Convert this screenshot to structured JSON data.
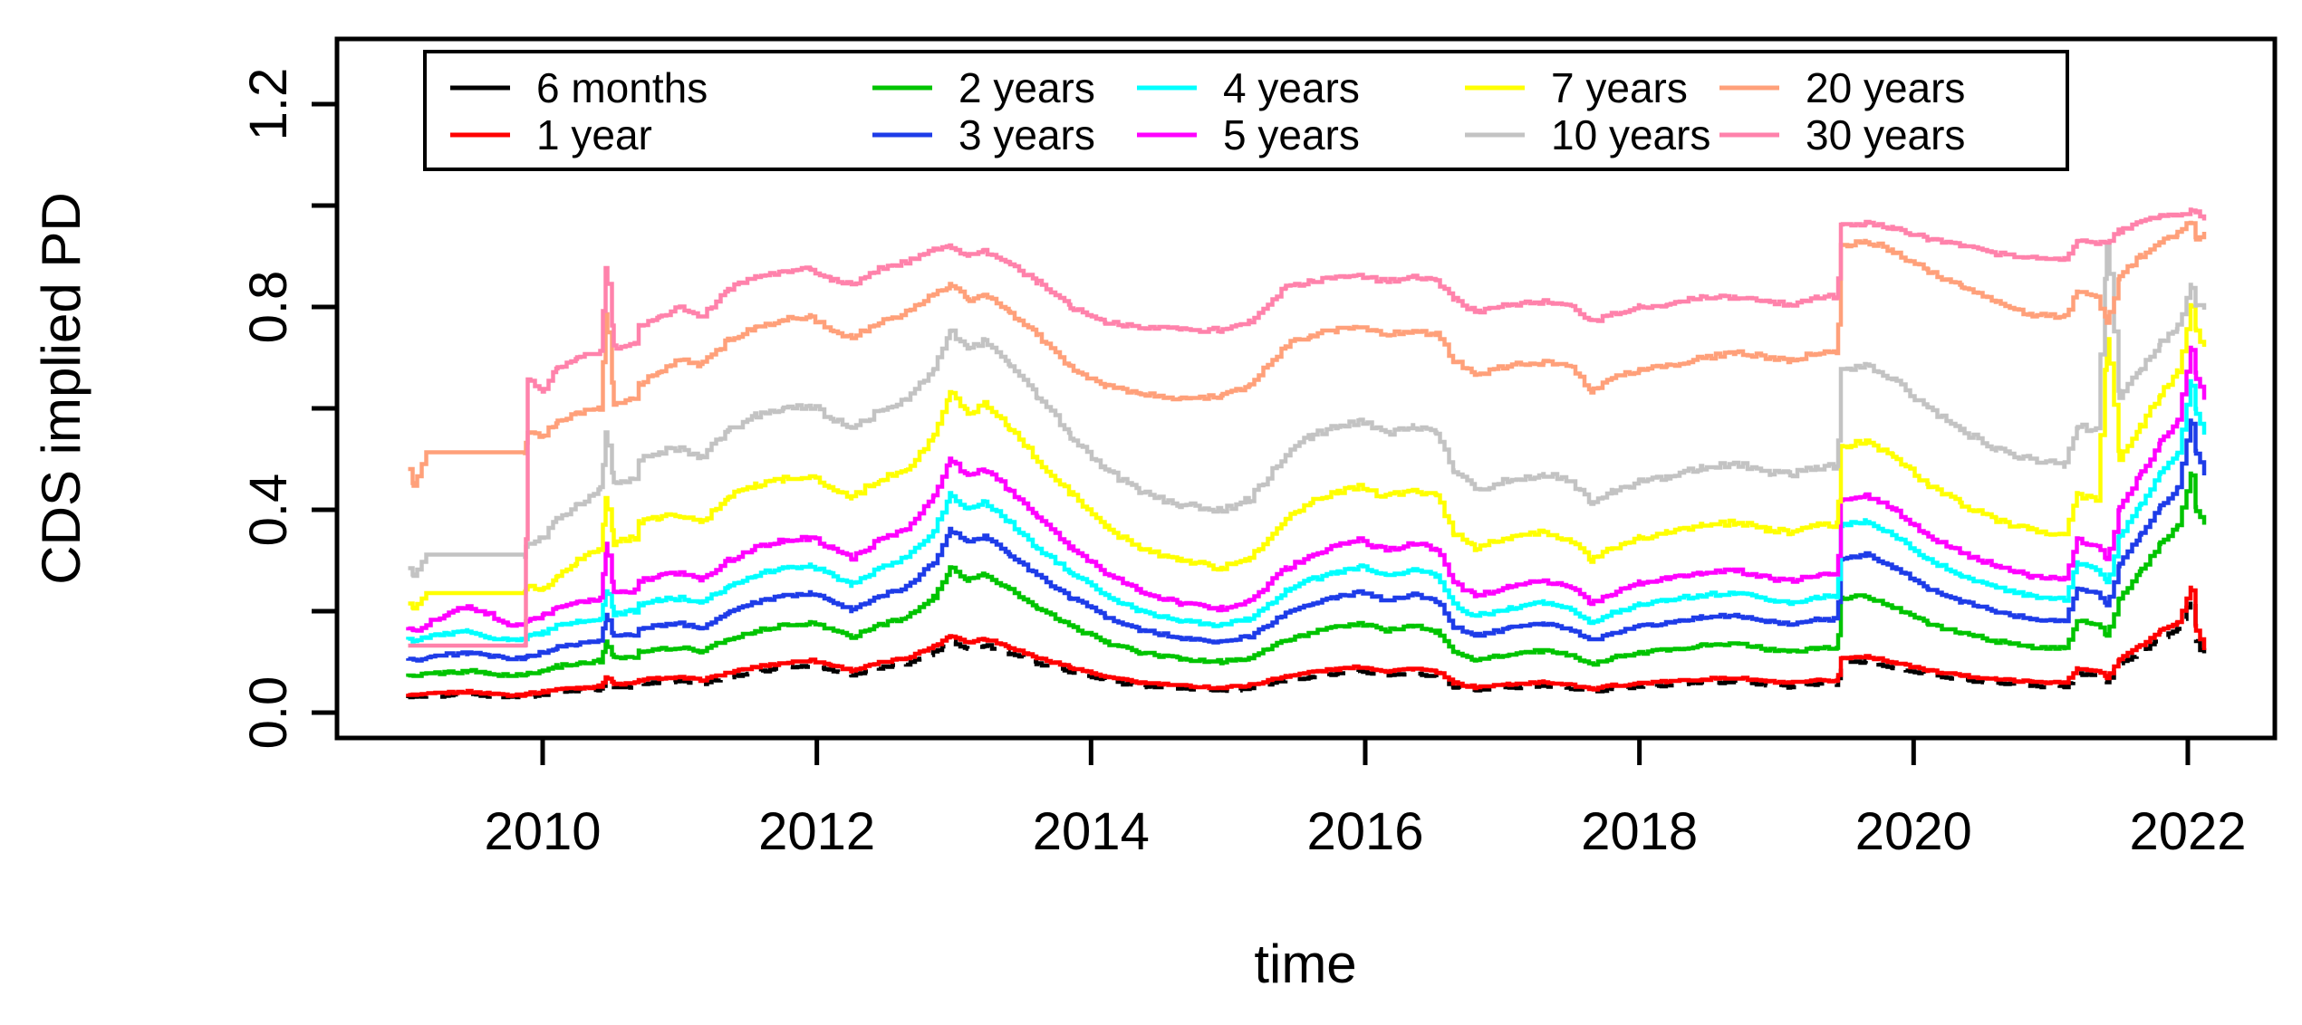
{
  "chart_data": {
    "type": "line",
    "title": "",
    "xlabel": "time",
    "ylabel": "CDS implied PD",
    "grid": false,
    "legend_position": "top",
    "legend_ncol": 5,
    "xlim": [
      2008.51,
      2022.57
    ],
    "ylim": [
      -0.05,
      1.325
    ],
    "x_tick_values": [
      2010,
      2012,
      2014,
      2016,
      2018,
      2020,
      2022
    ],
    "x_tick_labels": [
      "2010",
      "2012",
      "2014",
      "2016",
      "2018",
      "2020",
      "2022"
    ],
    "y_tick_values": [
      0,
      0.2,
      0.4,
      0.6,
      0.8,
      1.0,
      1.2
    ],
    "y_tick_label_values": [
      0,
      0.4,
      0.8,
      1.2
    ],
    "y_tick_labels_visible": [
      "0.0",
      "0.4",
      "0.8",
      "1.2"
    ],
    "x": [
      2009.02,
      2009.06,
      2009.15,
      2009.3,
      2009.45,
      2009.6,
      2009.75,
      2009.87,
      2009.89,
      2010.0,
      2010.1,
      2010.25,
      2010.42,
      2010.46,
      2010.52,
      2010.67,
      2010.7,
      2010.85,
      2011.0,
      2011.15,
      2011.35,
      2011.55,
      2011.75,
      2011.95,
      2012.1,
      2012.25,
      2012.45,
      2012.65,
      2012.85,
      2012.97,
      2013.1,
      2013.22,
      2013.4,
      2013.6,
      2013.85,
      2014.1,
      2014.35,
      2014.65,
      2014.95,
      2015.15,
      2015.42,
      2015.6,
      2015.8,
      2015.95,
      2016.15,
      2016.35,
      2016.52,
      2016.64,
      2016.8,
      2017.05,
      2017.3,
      2017.5,
      2017.65,
      2017.8,
      2018.0,
      2018.2,
      2018.45,
      2018.7,
      2018.95,
      2019.1,
      2019.3,
      2019.44,
      2019.47,
      2019.65,
      2019.85,
      2020.1,
      2020.35,
      2020.6,
      2020.85,
      2021.1,
      2021.19,
      2021.33,
      2021.41,
      2021.5,
      2021.65,
      2021.8,
      2021.92,
      2022.02,
      2022.06,
      2022.12
    ],
    "series": [
      {
        "label": "6 months",
        "color": "#000000",
        "values": [
          0.031,
          0.03,
          0.032,
          0.034,
          0.036,
          0.033,
          0.031,
          0.031,
          0.033,
          0.036,
          0.04,
          0.043,
          0.046,
          0.062,
          0.049,
          0.051,
          0.057,
          0.06,
          0.061,
          0.057,
          0.07,
          0.08,
          0.088,
          0.092,
          0.084,
          0.074,
          0.088,
          0.097,
          0.119,
          0.139,
          0.127,
          0.133,
          0.117,
          0.097,
          0.08,
          0.063,
          0.052,
          0.047,
          0.043,
          0.048,
          0.064,
          0.071,
          0.077,
          0.081,
          0.073,
          0.078,
          0.071,
          0.051,
          0.044,
          0.049,
          0.053,
          0.048,
          0.04,
          0.047,
          0.051,
          0.054,
          0.059,
          0.061,
          0.054,
          0.051,
          0.056,
          0.056,
          0.097,
          0.101,
          0.089,
          0.074,
          0.064,
          0.058,
          0.053,
          0.051,
          0.077,
          0.073,
          0.061,
          0.096,
          0.12,
          0.148,
          0.163,
          0.225,
          0.14,
          0.105
        ]
      },
      {
        "label": "1 year",
        "color": "#FF0000",
        "values": [
          0.036,
          0.034,
          0.037,
          0.039,
          0.041,
          0.038,
          0.035,
          0.035,
          0.038,
          0.041,
          0.046,
          0.049,
          0.052,
          0.07,
          0.056,
          0.058,
          0.064,
          0.068,
          0.069,
          0.064,
          0.079,
          0.09,
          0.098,
          0.103,
          0.094,
          0.083,
          0.098,
          0.108,
          0.131,
          0.152,
          0.139,
          0.146,
          0.129,
          0.108,
          0.089,
          0.071,
          0.059,
          0.053,
          0.049,
          0.054,
          0.072,
          0.08,
          0.086,
          0.09,
          0.082,
          0.087,
          0.08,
          0.058,
          0.05,
          0.056,
          0.06,
          0.055,
          0.046,
          0.053,
          0.058,
          0.061,
          0.066,
          0.068,
          0.061,
          0.058,
          0.063,
          0.063,
          0.107,
          0.111,
          0.099,
          0.083,
          0.073,
          0.066,
          0.061,
          0.059,
          0.086,
          0.082,
          0.07,
          0.107,
          0.132,
          0.162,
          0.178,
          0.245,
          0.16,
          0.125
        ]
      },
      {
        "label": "2 years",
        "color": "#00C400",
        "values": [
          0.073,
          0.071,
          0.076,
          0.079,
          0.082,
          0.077,
          0.073,
          0.073,
          0.078,
          0.083,
          0.091,
          0.097,
          0.102,
          0.138,
          0.108,
          0.111,
          0.121,
          0.126,
          0.128,
          0.121,
          0.145,
          0.161,
          0.172,
          0.177,
          0.165,
          0.149,
          0.172,
          0.188,
          0.228,
          0.285,
          0.262,
          0.272,
          0.243,
          0.206,
          0.17,
          0.139,
          0.118,
          0.106,
          0.1,
          0.108,
          0.143,
          0.158,
          0.169,
          0.176,
          0.162,
          0.171,
          0.159,
          0.119,
          0.104,
          0.115,
          0.122,
          0.112,
          0.096,
          0.108,
          0.118,
          0.124,
          0.132,
          0.136,
          0.124,
          0.12,
          0.128,
          0.128,
          0.225,
          0.23,
          0.208,
          0.176,
          0.156,
          0.141,
          0.13,
          0.126,
          0.182,
          0.175,
          0.152,
          0.228,
          0.278,
          0.335,
          0.368,
          0.47,
          0.4,
          0.37
        ]
      },
      {
        "label": "3 years",
        "color": "#1E3CE8",
        "values": [
          0.107,
          0.104,
          0.11,
          0.114,
          0.118,
          0.111,
          0.106,
          0.106,
          0.113,
          0.118,
          0.128,
          0.135,
          0.142,
          0.19,
          0.15,
          0.154,
          0.167,
          0.173,
          0.175,
          0.167,
          0.197,
          0.217,
          0.23,
          0.235,
          0.22,
          0.202,
          0.23,
          0.248,
          0.297,
          0.36,
          0.335,
          0.347,
          0.312,
          0.27,
          0.227,
          0.19,
          0.163,
          0.148,
          0.14,
          0.15,
          0.196,
          0.215,
          0.229,
          0.237,
          0.222,
          0.233,
          0.22,
          0.17,
          0.152,
          0.166,
          0.175,
          0.163,
          0.142,
          0.157,
          0.17,
          0.178,
          0.188,
          0.192,
          0.179,
          0.174,
          0.184,
          0.184,
          0.305,
          0.312,
          0.287,
          0.245,
          0.219,
          0.199,
          0.185,
          0.18,
          0.245,
          0.237,
          0.21,
          0.295,
          0.35,
          0.408,
          0.443,
          0.575,
          0.51,
          0.47
        ]
      },
      {
        "label": "4 years",
        "color": "#00FFFF",
        "values": [
          0.146,
          0.142,
          0.15,
          0.155,
          0.16,
          0.15,
          0.143,
          0.143,
          0.152,
          0.158,
          0.17,
          0.178,
          0.185,
          0.24,
          0.195,
          0.2,
          0.215,
          0.222,
          0.225,
          0.215,
          0.25,
          0.272,
          0.285,
          0.29,
          0.272,
          0.253,
          0.285,
          0.305,
          0.36,
          0.43,
          0.4,
          0.415,
          0.375,
          0.325,
          0.275,
          0.232,
          0.2,
          0.182,
          0.172,
          0.185,
          0.24,
          0.262,
          0.278,
          0.288,
          0.27,
          0.283,
          0.268,
          0.212,
          0.19,
          0.207,
          0.217,
          0.203,
          0.178,
          0.196,
          0.212,
          0.222,
          0.232,
          0.236,
          0.222,
          0.217,
          0.228,
          0.228,
          0.37,
          0.378,
          0.35,
          0.302,
          0.27,
          0.247,
          0.23,
          0.224,
          0.295,
          0.285,
          0.255,
          0.35,
          0.41,
          0.472,
          0.51,
          0.65,
          0.59,
          0.55
        ]
      },
      {
        "label": "5 years",
        "color": "#FF00FF",
        "values": [
          0.168,
          0.162,
          0.175,
          0.195,
          0.21,
          0.195,
          0.172,
          0.172,
          0.185,
          0.19,
          0.205,
          0.215,
          0.225,
          0.33,
          0.235,
          0.24,
          0.26,
          0.27,
          0.275,
          0.262,
          0.3,
          0.325,
          0.34,
          0.345,
          0.325,
          0.305,
          0.34,
          0.36,
          0.425,
          0.5,
          0.465,
          0.48,
          0.44,
          0.385,
          0.325,
          0.275,
          0.24,
          0.215,
          0.205,
          0.22,
          0.285,
          0.31,
          0.33,
          0.34,
          0.32,
          0.335,
          0.32,
          0.255,
          0.23,
          0.25,
          0.26,
          0.245,
          0.215,
          0.235,
          0.255,
          0.265,
          0.275,
          0.28,
          0.265,
          0.26,
          0.272,
          0.272,
          0.42,
          0.43,
          0.4,
          0.35,
          0.315,
          0.29,
          0.27,
          0.263,
          0.34,
          0.33,
          0.3,
          0.405,
          0.47,
          0.535,
          0.575,
          0.72,
          0.66,
          0.62
        ]
      },
      {
        "label": "7 years",
        "color": "#FFFF00",
        "values": [
          0.215,
          0.205,
          0.236,
          0.236,
          0.236,
          0.236,
          0.236,
          0.236,
          0.25,
          0.245,
          0.27,
          0.3,
          0.325,
          0.42,
          0.335,
          0.345,
          0.375,
          0.385,
          0.39,
          0.375,
          0.425,
          0.45,
          0.46,
          0.465,
          0.445,
          0.425,
          0.46,
          0.48,
          0.545,
          0.63,
          0.59,
          0.61,
          0.56,
          0.5,
          0.43,
          0.365,
          0.325,
          0.3,
          0.285,
          0.305,
          0.385,
          0.415,
          0.435,
          0.445,
          0.425,
          0.44,
          0.425,
          0.355,
          0.325,
          0.345,
          0.355,
          0.34,
          0.3,
          0.325,
          0.345,
          0.355,
          0.37,
          0.375,
          0.36,
          0.355,
          0.37,
          0.37,
          0.525,
          0.535,
          0.505,
          0.45,
          0.41,
          0.38,
          0.36,
          0.35,
          0.43,
          0.42,
          0.74,
          0.5,
          0.565,
          0.63,
          0.67,
          0.8,
          0.75,
          0.72
        ]
      },
      {
        "label": "10 years",
        "color": "#C3C3C3",
        "values": [
          0.285,
          0.27,
          0.312,
          0.312,
          0.312,
          0.312,
          0.312,
          0.312,
          0.335,
          0.345,
          0.38,
          0.41,
          0.44,
          0.55,
          0.45,
          0.46,
          0.5,
          0.515,
          0.52,
          0.505,
          0.555,
          0.585,
          0.6,
          0.605,
          0.58,
          0.56,
          0.595,
          0.62,
          0.675,
          0.755,
          0.715,
          0.735,
          0.685,
          0.625,
          0.545,
          0.48,
          0.435,
          0.41,
          0.4,
          0.42,
          0.51,
          0.545,
          0.565,
          0.575,
          0.55,
          0.565,
          0.55,
          0.475,
          0.44,
          0.46,
          0.47,
          0.455,
          0.41,
          0.435,
          0.455,
          0.465,
          0.485,
          0.49,
          0.475,
          0.47,
          0.485,
          0.485,
          0.675,
          0.685,
          0.655,
          0.6,
          0.555,
          0.52,
          0.5,
          0.49,
          0.565,
          0.555,
          0.93,
          0.62,
          0.68,
          0.73,
          0.76,
          0.845,
          0.8,
          0.8
        ]
      },
      {
        "label": "20 years",
        "color": "#FFA07A",
        "values": [
          0.48,
          0.447,
          0.513,
          0.513,
          0.513,
          0.513,
          0.513,
          0.513,
          0.555,
          0.545,
          0.575,
          0.59,
          0.6,
          0.79,
          0.61,
          0.62,
          0.65,
          0.67,
          0.7,
          0.685,
          0.735,
          0.76,
          0.775,
          0.78,
          0.755,
          0.74,
          0.77,
          0.79,
          0.825,
          0.845,
          0.815,
          0.825,
          0.79,
          0.745,
          0.68,
          0.645,
          0.63,
          0.62,
          0.625,
          0.645,
          0.725,
          0.745,
          0.755,
          0.76,
          0.745,
          0.755,
          0.745,
          0.695,
          0.665,
          0.685,
          0.69,
          0.68,
          0.635,
          0.66,
          0.675,
          0.685,
          0.7,
          0.71,
          0.7,
          0.695,
          0.71,
          0.71,
          0.92,
          0.93,
          0.91,
          0.87,
          0.84,
          0.81,
          0.785,
          0.78,
          0.83,
          0.82,
          0.77,
          0.86,
          0.9,
          0.93,
          0.945,
          0.97,
          0.93,
          0.945
        ]
      },
      {
        "label": "30 years",
        "color": "#FF82AB",
        "values": [
          0.132,
          0.132,
          0.132,
          0.132,
          0.132,
          0.132,
          0.132,
          0.132,
          0.66,
          0.63,
          0.68,
          0.7,
          0.71,
          0.88,
          0.72,
          0.73,
          0.76,
          0.78,
          0.8,
          0.78,
          0.835,
          0.86,
          0.87,
          0.875,
          0.855,
          0.845,
          0.875,
          0.89,
          0.915,
          0.92,
          0.9,
          0.91,
          0.885,
          0.85,
          0.8,
          0.77,
          0.76,
          0.755,
          0.755,
          0.77,
          0.84,
          0.85,
          0.86,
          0.86,
          0.85,
          0.86,
          0.85,
          0.815,
          0.79,
          0.805,
          0.81,
          0.8,
          0.77,
          0.785,
          0.8,
          0.805,
          0.82,
          0.82,
          0.81,
          0.805,
          0.82,
          0.82,
          0.96,
          0.965,
          0.955,
          0.935,
          0.92,
          0.905,
          0.895,
          0.895,
          0.93,
          0.925,
          0.93,
          0.95,
          0.97,
          0.98,
          0.98,
          0.99,
          0.985,
          0.97
        ]
      }
    ]
  }
}
